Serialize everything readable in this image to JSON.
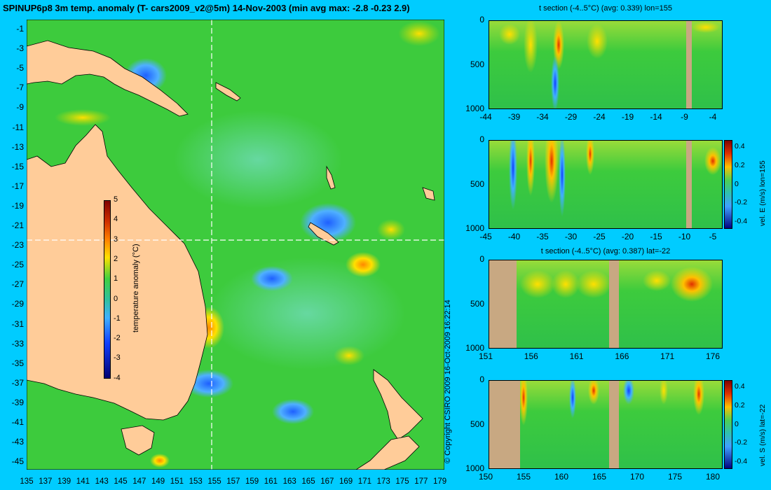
{
  "title": "SPINUP6p8 3m temp. anomaly (T- cars2009_v2@5m) 14-Nov-2003 (min avg max: -2.8 -0.23 2.9)",
  "map": {
    "y_ticks": [
      "-1",
      "-3",
      "-5",
      "-7",
      "-9",
      "-11",
      "-13",
      "-15",
      "-17",
      "-19",
      "-21",
      "-23",
      "-25",
      "-27",
      "-29",
      "-31",
      "-33",
      "-35",
      "-37",
      "-39",
      "-41",
      "-43",
      "-45"
    ],
    "x_ticks": [
      "135",
      "137",
      "139",
      "141",
      "143",
      "145",
      "147",
      "149",
      "151",
      "153",
      "155",
      "157",
      "159",
      "161",
      "163",
      "165",
      "167",
      "169",
      "171",
      "173",
      "175",
      "177",
      "179"
    ],
    "colorbar": {
      "label": "temperature anomaly (°C)",
      "ticks": [
        "5",
        "4",
        "3",
        "2",
        "1",
        "0",
        "-1",
        "-2",
        "-3",
        "-4"
      ]
    },
    "colors": {
      "ocean": "#3DCB3D",
      "land": "#FFCC99",
      "warm": "#FFD400",
      "cool": "#3AA0FF"
    }
  },
  "copyright": "© Copyright CSIRO 2009  16-Oct-2009 16:22:14",
  "panels": [
    {
      "title": "t section (-4..5°C) (avg: 0.339) lon=155",
      "x_ticks": [
        "-44",
        "-39",
        "-34",
        "-29",
        "-24",
        "-19",
        "-14",
        "-9",
        "-4"
      ],
      "y_ticks": [
        "0",
        "500",
        "1000"
      ],
      "colorbar": null
    },
    {
      "title": "",
      "x_ticks": [
        "-45",
        "-40",
        "-35",
        "-30",
        "-25",
        "-20",
        "-15",
        "-10",
        "-5"
      ],
      "y_ticks": [
        "0",
        "500",
        "1000"
      ],
      "colorbar": {
        "label": "vel. E (m/s) lon=155",
        "ticks": [
          "0.4",
          "0.2",
          "0",
          "-0.2",
          "-0.4"
        ]
      }
    },
    {
      "title": "t section (-4..5°C) (avg: 0.387) lat=-22",
      "x_ticks": [
        "151",
        "156",
        "161",
        "166",
        "171",
        "176"
      ],
      "y_ticks": [
        "0",
        "500",
        "1000"
      ],
      "colorbar": null
    },
    {
      "title": "",
      "x_ticks": [
        "150",
        "155",
        "160",
        "165",
        "170",
        "175",
        "180"
      ],
      "y_ticks": [
        "0",
        "500",
        "1000"
      ],
      "colorbar": {
        "label": "vel. S (m/s) lat=-22",
        "ticks": [
          "0.4",
          "0.2",
          "0",
          "-0.2",
          "-0.4"
        ]
      }
    }
  ]
}
